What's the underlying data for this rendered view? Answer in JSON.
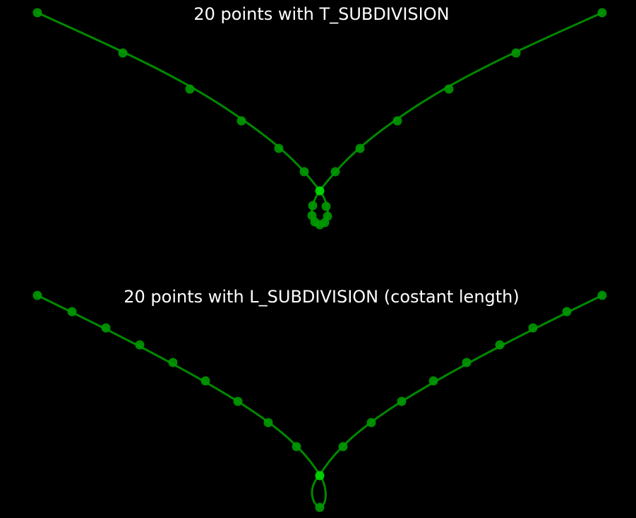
{
  "panels": [
    {
      "title": "20 points with T_SUBDIVISION"
    },
    {
      "title": "20 points with L_SUBDIVISION (costant length)"
    }
  ],
  "colors": {
    "background": "#000000",
    "curve": "#008800",
    "point": "#009900",
    "point_highlight": "#00dd00",
    "title": "#ffffff"
  },
  "icons": {
    "point_marker": "filled-circle"
  }
}
